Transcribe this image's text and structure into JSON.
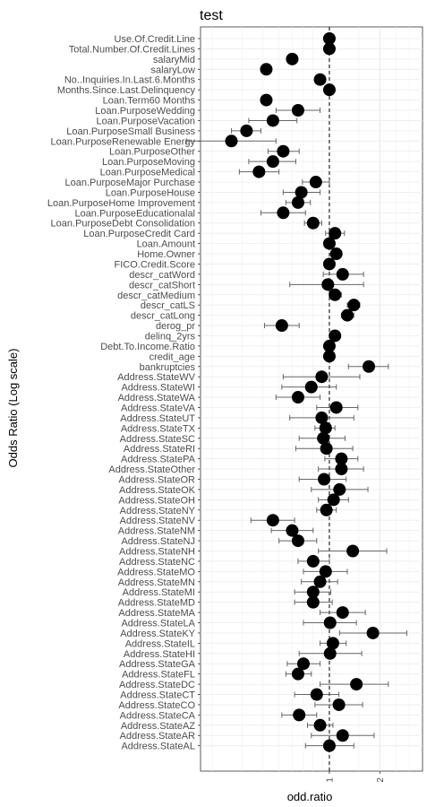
{
  "chart_data": {
    "type": "scatter",
    "title": "test",
    "xlabel": "odd.ratio",
    "ylabel": "Odds Ratio (Log scale)",
    "x_scale": "log",
    "xlim": [
      0.17,
      3.6
    ],
    "x_ticks": [
      {
        "value": 1,
        "label": "1"
      },
      {
        "value": 2,
        "label": "2"
      }
    ],
    "reference_line": 1,
    "grid": true,
    "point_color": "#000000",
    "rows": [
      {
        "label": "Use.Of.Credit.Line",
        "or": 1.0,
        "lo": 0.98,
        "hi": 1.02
      },
      {
        "label": "Total.Number.Of.Credit.Lines",
        "or": 1.0,
        "lo": 0.98,
        "hi": 1.02
      },
      {
        "label": "salaryMid",
        "or": 0.6,
        "lo": 0.56,
        "hi": 0.64
      },
      {
        "label": "salaryLow",
        "or": 0.42,
        "lo": 0.39,
        "hi": 0.45
      },
      {
        "label": "No..Inquiries.In.Last.6.Months",
        "or": 0.88,
        "lo": 0.85,
        "hi": 0.91
      },
      {
        "label": "Months.Since.Last.Delinquency",
        "or": 1.0,
        "lo": 0.99,
        "hi": 1.01
      },
      {
        "label": "Loan.Term60 Months",
        "or": 0.42,
        "lo": 0.39,
        "hi": 0.45
      },
      {
        "label": "Loan.PurposeWedding",
        "or": 0.65,
        "lo": 0.48,
        "hi": 0.88
      },
      {
        "label": "Loan.PurposeVacation",
        "or": 0.46,
        "lo": 0.33,
        "hi": 0.64
      },
      {
        "label": "Loan.PurposeSmall Business",
        "or": 0.32,
        "lo": 0.26,
        "hi": 0.39
      },
      {
        "label": "Loan.PurposeRenewable Energy",
        "or": 0.26,
        "lo": 0.14,
        "hi": 0.48
      },
      {
        "label": "Loan.PurposeOther",
        "or": 0.53,
        "lo": 0.43,
        "hi": 0.66
      },
      {
        "label": "Loan.PurposeMoving",
        "or": 0.46,
        "lo": 0.33,
        "hi": 0.63
      },
      {
        "label": "Loan.PurposeMedical",
        "or": 0.38,
        "lo": 0.29,
        "hi": 0.5
      },
      {
        "label": "Loan.PurposeMajor Purchase",
        "or": 0.83,
        "lo": 0.69,
        "hi": 1.0
      },
      {
        "label": "Loan.PurposeHouse",
        "or": 0.68,
        "lo": 0.53,
        "hi": 0.88
      },
      {
        "label": "Loan.PurposeHome Improvement",
        "or": 0.65,
        "lo": 0.55,
        "hi": 0.77
      },
      {
        "label": "Loan.PurposeEducationalal",
        "or": 0.53,
        "lo": 0.39,
        "hi": 0.72
      },
      {
        "label": "Loan.PurposeDebt Consolidation",
        "or": 0.8,
        "lo": 0.71,
        "hi": 0.9
      },
      {
        "label": "Loan.PurposeCredit Card",
        "or": 1.08,
        "lo": 0.95,
        "hi": 1.23
      },
      {
        "label": "Loan.Amount",
        "or": 1.0,
        "lo": 0.99,
        "hi": 1.01
      },
      {
        "label": "Home.Owner",
        "or": 1.1,
        "lo": 1.04,
        "hi": 1.16
      },
      {
        "label": "FICO.Credit.Score",
        "or": 1.0,
        "lo": 0.99,
        "hi": 1.01
      },
      {
        "label": "descr_catWord",
        "or": 1.2,
        "lo": 0.92,
        "hi": 1.6
      },
      {
        "label": "descr_catShort",
        "or": 0.98,
        "lo": 0.58,
        "hi": 1.6
      },
      {
        "label": "descr_catMedium",
        "or": 1.08,
        "lo": 1.0,
        "hi": 1.18
      },
      {
        "label": "descr_catLS",
        "or": 1.4,
        "lo": 1.28,
        "hi": 1.52
      },
      {
        "label": "descr_catLong",
        "or": 1.28,
        "lo": 1.18,
        "hi": 1.4
      },
      {
        "label": "derog_pr",
        "or": 0.52,
        "lo": 0.41,
        "hi": 0.66
      },
      {
        "label": "delinq_2yrs",
        "or": 1.08,
        "lo": 1.02,
        "hi": 1.14
      },
      {
        "label": "Debt.To.Income.Ratio",
        "or": 1.0,
        "lo": 0.99,
        "hi": 1.01
      },
      {
        "label": "credit_age",
        "or": 1.0,
        "lo": 0.99,
        "hi": 1.01
      },
      {
        "label": "bankruptcies",
        "or": 1.72,
        "lo": 1.3,
        "hi": 2.25
      },
      {
        "label": "Address.StateWV",
        "or": 0.9,
        "lo": 0.53,
        "hi": 1.52
      },
      {
        "label": "Address.StateWI",
        "or": 0.78,
        "lo": 0.52,
        "hi": 1.1
      },
      {
        "label": "Address.StateWA",
        "or": 0.65,
        "lo": 0.48,
        "hi": 0.88
      },
      {
        "label": "Address.StateVA",
        "or": 1.1,
        "lo": 0.84,
        "hi": 1.48
      },
      {
        "label": "Address.StateUT",
        "or": 0.9,
        "lo": 0.58,
        "hi": 1.4
      },
      {
        "label": "Address.StateTX",
        "or": 0.95,
        "lo": 0.82,
        "hi": 1.08
      },
      {
        "label": "Address.StateSC",
        "or": 0.92,
        "lo": 0.66,
        "hi": 1.24
      },
      {
        "label": "Address.StateRI",
        "or": 0.96,
        "lo": 0.63,
        "hi": 1.38
      },
      {
        "label": "Address.StatePA",
        "or": 1.18,
        "lo": 0.94,
        "hi": 1.48
      },
      {
        "label": "Address.StateOther",
        "or": 1.18,
        "lo": 0.86,
        "hi": 1.6
      },
      {
        "label": "Address.StateOR",
        "or": 0.93,
        "lo": 0.66,
        "hi": 1.26
      },
      {
        "label": "Address.StateOK",
        "or": 1.15,
        "lo": 0.78,
        "hi": 1.7
      },
      {
        "label": "Address.StateOH",
        "or": 1.06,
        "lo": 0.86,
        "hi": 1.3
      },
      {
        "label": "Address.StateNY",
        "or": 0.96,
        "lo": 0.84,
        "hi": 1.1
      },
      {
        "label": "Address.StateNV",
        "or": 0.46,
        "lo": 0.34,
        "hi": 0.62
      },
      {
        "label": "Address.StateNM",
        "or": 0.6,
        "lo": 0.45,
        "hi": 0.8
      },
      {
        "label": "Address.StateNJ",
        "or": 0.65,
        "lo": 0.5,
        "hi": 0.84
      },
      {
        "label": "Address.StateNH",
        "or": 1.38,
        "lo": 0.86,
        "hi": 2.2
      },
      {
        "label": "Address.StateNC",
        "or": 0.8,
        "lo": 0.65,
        "hi": 1.0
      },
      {
        "label": "Address.StateMO",
        "or": 0.95,
        "lo": 0.7,
        "hi": 1.28
      },
      {
        "label": "Address.StateMN",
        "or": 0.88,
        "lo": 0.68,
        "hi": 1.12
      },
      {
        "label": "Address.StateMI",
        "or": 0.8,
        "lo": 0.62,
        "hi": 1.02
      },
      {
        "label": "Address.StateMD",
        "or": 0.8,
        "lo": 0.62,
        "hi": 1.04
      },
      {
        "label": "Address.StateMA",
        "or": 1.2,
        "lo": 0.88,
        "hi": 1.64
      },
      {
        "label": "Address.StateLA",
        "or": 1.01,
        "lo": 0.7,
        "hi": 1.45
      },
      {
        "label": "Address.StateKY",
        "or": 1.82,
        "lo": 1.15,
        "hi": 2.9
      },
      {
        "label": "Address.StateIL",
        "or": 1.05,
        "lo": 0.88,
        "hi": 1.26
      },
      {
        "label": "Address.StateHI",
        "or": 1.01,
        "lo": 0.66,
        "hi": 1.56
      },
      {
        "label": "Address.StateGA",
        "or": 0.7,
        "lo": 0.56,
        "hi": 0.88
      },
      {
        "label": "Address.StateFL",
        "or": 0.65,
        "lo": 0.55,
        "hi": 0.78
      },
      {
        "label": "Address.StateDC",
        "or": 1.45,
        "lo": 0.88,
        "hi": 2.25
      },
      {
        "label": "Address.StateCT",
        "or": 0.84,
        "lo": 0.62,
        "hi": 1.14
      },
      {
        "label": "Address.StateCO",
        "or": 1.14,
        "lo": 0.82,
        "hi": 1.58
      },
      {
        "label": "Address.StateCA",
        "or": 0.66,
        "lo": 0.52,
        "hi": 0.84
      },
      {
        "label": "Address.StateAZ",
        "or": 0.88,
        "lo": 0.74,
        "hi": 1.05
      },
      {
        "label": "Address.StateAR",
        "or": 1.2,
        "lo": 0.78,
        "hi": 1.85
      },
      {
        "label": "Address.StateAL",
        "or": 1.0,
        "lo": 0.72,
        "hi": 1.4
      }
    ]
  }
}
